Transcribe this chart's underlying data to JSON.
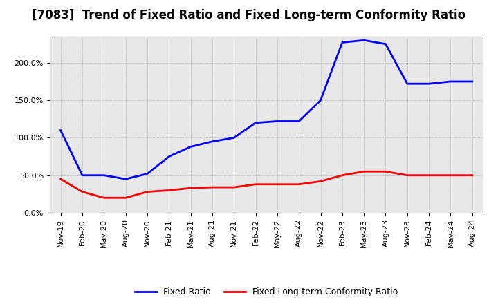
{
  "title": "[7083]  Trend of Fixed Ratio and Fixed Long-term Conformity Ratio",
  "x_labels": [
    "Nov-19",
    "Feb-20",
    "May-20",
    "Aug-20",
    "Nov-20",
    "Feb-21",
    "May-21",
    "Aug-21",
    "Nov-21",
    "Feb-22",
    "May-22",
    "Aug-22",
    "Nov-22",
    "Feb-23",
    "May-23",
    "Aug-23",
    "Nov-23",
    "Feb-24",
    "May-24",
    "Aug-24"
  ],
  "fixed_ratio": [
    110,
    50,
    50,
    45,
    52,
    75,
    88,
    95,
    100,
    120,
    122,
    122,
    150,
    227,
    230,
    225,
    172,
    172,
    175,
    175
  ],
  "fixed_lt_ratio": [
    45,
    28,
    20,
    20,
    28,
    30,
    33,
    34,
    34,
    38,
    38,
    38,
    42,
    50,
    55,
    55,
    50,
    50,
    50,
    50
  ],
  "ylim": [
    0,
    235
  ],
  "yticks": [
    0,
    50,
    100,
    150,
    200
  ],
  "fixed_ratio_color": "#0000FF",
  "fixed_lt_ratio_color": "#FF0000",
  "background_color": "#FFFFFF",
  "plot_bg_color": "#E8E8E8",
  "grid_color": "#888888",
  "line_width": 2.0,
  "title_fontsize": 12,
  "tick_fontsize": 8,
  "legend_fontsize": 9
}
